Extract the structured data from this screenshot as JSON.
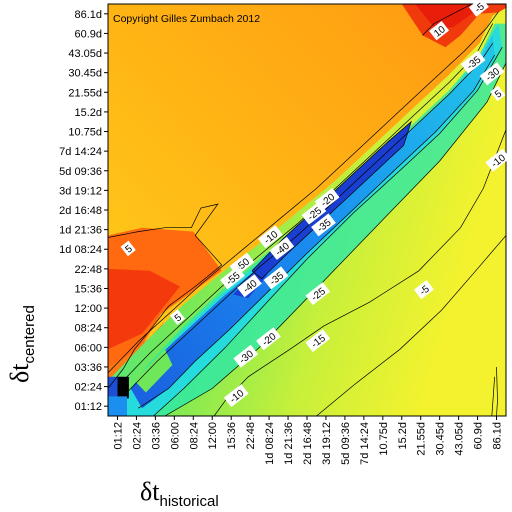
{
  "chart_data": {
    "type": "heatmap",
    "title": "",
    "annotation": "Copyright Gilles Zumbach 2012",
    "xlabel": {
      "symbol": "δt",
      "subscript": "historical"
    },
    "ylabel": {
      "symbol": "δt",
      "subscript": "centered"
    },
    "x_ticks": [
      "01:12",
      "02:24",
      "03:36",
      "06:00",
      "08:24",
      "12:00",
      "15:36",
      "22:48",
      "1d 08:24",
      "1d 21:36",
      "2d 16:48",
      "3d 19:12",
      "5d 09:36",
      "7d 14:24",
      "10.75d",
      "15.2d",
      "21.55d",
      "30.45d",
      "43.05d",
      "60.9d",
      "86.1d"
    ],
    "y_ticks": [
      "86.1d",
      "60.9d",
      "43.05d",
      "30.45d",
      "21.55d",
      "15.2d",
      "10.75d",
      "7d 14:24",
      "5d 09:36",
      "3d 19:12",
      "2d 16:48",
      "1d 21:36",
      "1d 08:24",
      "22:48",
      "15:36",
      "12:00",
      "08:24",
      "06:00",
      "03:36",
      "02:24",
      "01:12"
    ],
    "colormap": [
      "#1a4fd6",
      "#1a8ff0",
      "#22d8e8",
      "#2ce8a8",
      "#6ee85a",
      "#c8f03a",
      "#f4f22e",
      "#ffd21c",
      "#ffa012",
      "#ff6a10",
      "#f02a0c"
    ],
    "contour_labels": [
      {
        "text": "10",
        "xi": 17.5,
        "yi": 1.4
      },
      {
        "text": "-5",
        "xi": 19.6,
        "yi": 0.2
      },
      {
        "text": "-35",
        "xi": 19.3,
        "yi": 3.0
      },
      {
        "text": "-30",
        "xi": 20.3,
        "yi": 3.6
      },
      {
        "text": "5",
        "xi": 20.6,
        "yi": 4.6
      },
      {
        "text": "-10",
        "xi": 20.6,
        "yi": 8.0
      },
      {
        "text": "-20",
        "xi": 11.6,
        "yi": 10.0
      },
      {
        "text": "-25",
        "xi": 10.9,
        "yi": 10.7
      },
      {
        "text": "-35",
        "xi": 11.4,
        "yi": 11.3
      },
      {
        "text": "-10",
        "xi": 8.6,
        "yi": 11.9
      },
      {
        "text": "-40",
        "xi": 9.2,
        "yi": 12.5
      },
      {
        "text": "5",
        "xi": 1.1,
        "yi": 12.5
      },
      {
        "text": "-50",
        "xi": 7.1,
        "yi": 13.3
      },
      {
        "text": "-55",
        "xi": 6.6,
        "yi": 14.0
      },
      {
        "text": "-40",
        "xi": 7.5,
        "yi": 14.4
      },
      {
        "text": "-35",
        "xi": 8.9,
        "yi": 14.0
      },
      {
        "text": "-25",
        "xi": 11.1,
        "yi": 14.8
      },
      {
        "text": "-5",
        "xi": 16.7,
        "yi": 14.6
      },
      {
        "text": "5",
        "xi": 3.7,
        "yi": 16.0
      },
      {
        "text": "-20",
        "xi": 8.5,
        "yi": 17.1
      },
      {
        "text": "-15",
        "xi": 11.1,
        "yi": 17.2
      },
      {
        "text": "-30",
        "xi": 7.3,
        "yi": 18.0
      },
      {
        "text": "-10",
        "xi": 6.8,
        "yi": 20.0
      }
    ]
  }
}
